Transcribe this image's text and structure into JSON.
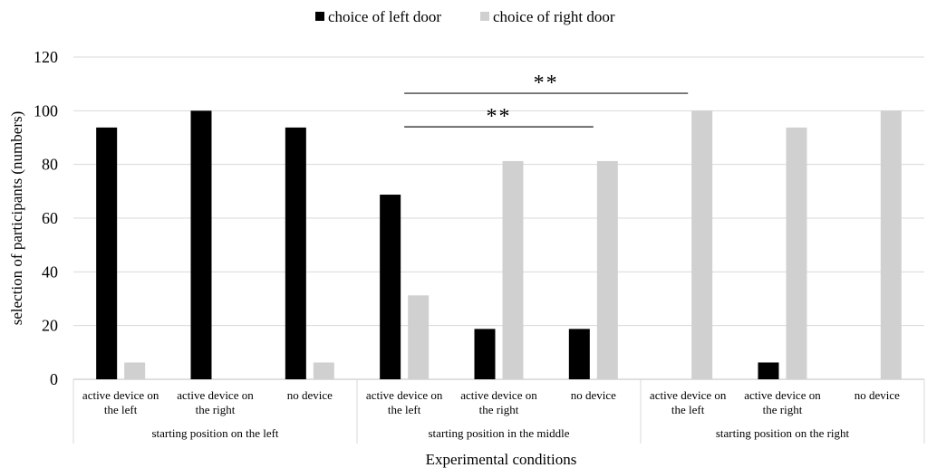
{
  "chart_data": {
    "type": "bar",
    "title": "",
    "xlabel": "Experimental conditions",
    "ylabel": "selection of participants (numbers)",
    "ylim": [
      0,
      120
    ],
    "yticks": [
      0,
      20,
      40,
      60,
      80,
      100,
      120
    ],
    "grid": true,
    "legend_position": "top",
    "categories": [
      [
        "active device on",
        "the left"
      ],
      [
        "active device on",
        "the right"
      ],
      [
        "no device"
      ],
      [
        "active device on",
        "the left"
      ],
      [
        "active device on",
        "the right"
      ],
      [
        "no device"
      ],
      [
        "active device on",
        "the left"
      ],
      [
        "active device on",
        "the right"
      ],
      [
        "no device"
      ]
    ],
    "groups": [
      {
        "label": "starting position on the left",
        "count": 3
      },
      {
        "label": "starting position in the middle",
        "count": 3
      },
      {
        "label": "starting position on the right",
        "count": 3
      }
    ],
    "series": [
      {
        "name": "choice of left door",
        "color": "#000000",
        "values": [
          93.75,
          100,
          93.75,
          68.75,
          18.75,
          18.75,
          0,
          6.25,
          0
        ]
      },
      {
        "name": "choice of right door",
        "color": "#d0d0d0",
        "values": [
          6.25,
          0,
          6.25,
          31.25,
          81.25,
          81.25,
          100,
          93.75,
          100
        ]
      }
    ],
    "annotations": [
      {
        "text": "**",
        "from_category": 3,
        "to_category": 5,
        "y": 94
      },
      {
        "text": "**",
        "from_category": 3,
        "to_category": 6,
        "y": 106.5
      }
    ]
  }
}
